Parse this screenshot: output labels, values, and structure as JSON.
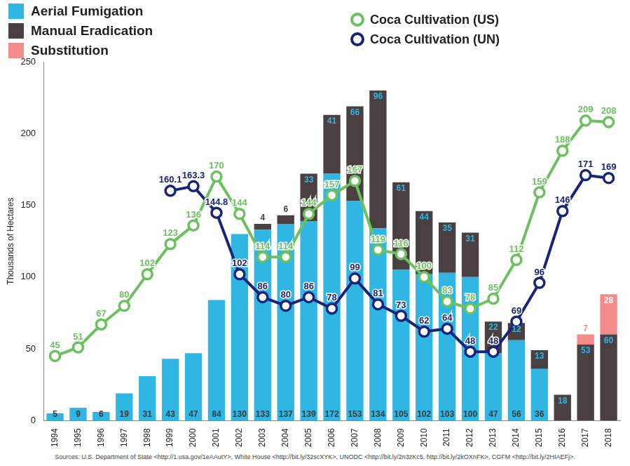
{
  "chart_data": {
    "type": "bar",
    "y_label": "Thousands of Hectares",
    "source": "Sources: U.S. Department of State <http://1.usa.gov/1eAAutY>, White House <http://bit.ly/32scXYK>, UNODC <http://bit.ly/2n3zKc5, http://bit.ly/2kOXnFK>, CGFM <http://bit.ly/2HIAEFj>.",
    "categories": [
      "1994",
      "1995",
      "1996",
      "1997",
      "1998",
      "1999",
      "2000",
      "2001",
      "2002",
      "2003",
      "2004",
      "2005",
      "2006",
      "2007",
      "2008",
      "2009",
      "2010",
      "2011",
      "2012",
      "2013",
      "2014",
      "2015",
      "2016",
      "2017",
      "2018"
    ],
    "stacked": true,
    "data_labels": true,
    "grid": false,
    "legend": "top",
    "ylim": [
      0,
      250
    ],
    "yticks": [
      0,
      50,
      100,
      150,
      200,
      250
    ],
    "series": [
      {
        "name": "Aerial Fumigation",
        "type": "bar",
        "color": "#2fb6e2",
        "values": [
          5,
          9,
          6,
          19,
          31,
          43,
          47,
          84,
          130,
          133,
          137,
          139,
          172,
          153,
          134,
          105,
          102,
          103,
          100,
          47,
          56,
          36,
          null,
          null,
          null
        ]
      },
      {
        "name": "Manual Eradication",
        "type": "bar",
        "color": "#4a3f41",
        "values": [
          null,
          null,
          null,
          null,
          null,
          null,
          null,
          null,
          null,
          4,
          6,
          33,
          41,
          66,
          96,
          61,
          44,
          35,
          31,
          22,
          12,
          13,
          18,
          53,
          60
        ]
      },
      {
        "name": "Substitution",
        "type": "bar",
        "color": "#f58a8a",
        "values": [
          null,
          null,
          null,
          null,
          null,
          null,
          null,
          null,
          null,
          null,
          null,
          null,
          null,
          null,
          null,
          null,
          null,
          null,
          null,
          null,
          null,
          null,
          null,
          7,
          28
        ]
      },
      {
        "name": "Coca Cultivation (US)",
        "type": "line",
        "color": "#6cc060",
        "marker": "circle",
        "values": [
          45,
          51,
          67,
          80,
          102,
          123,
          136,
          170,
          144,
          114,
          114,
          144,
          157,
          167,
          119,
          116,
          100,
          83,
          78,
          85,
          112,
          159,
          188,
          209,
          208
        ]
      },
      {
        "name": "Coca Cultivation (UN)",
        "type": "line",
        "color": "#18237a",
        "marker": "circle",
        "values": [
          null,
          null,
          null,
          null,
          null,
          160.1,
          163.3,
          144.8,
          102,
          86,
          80,
          86,
          78,
          99,
          81,
          73,
          62,
          64,
          48,
          48,
          69,
          96,
          146,
          171,
          169
        ]
      }
    ]
  }
}
